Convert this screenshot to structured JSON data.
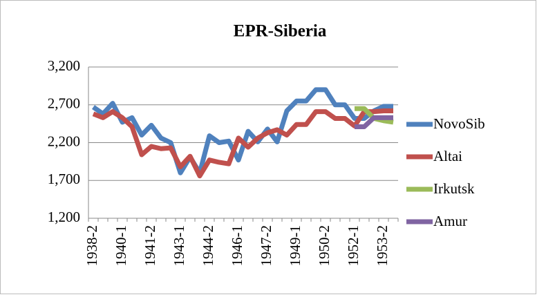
{
  "chart_data": {
    "type": "line",
    "title": "EPR-Siberia",
    "categories": [
      "1938-2",
      null,
      null,
      "1940-1",
      null,
      null,
      "1941-2",
      null,
      null,
      "1943-1",
      null,
      null,
      "1944-2",
      null,
      null,
      "1946-1",
      null,
      null,
      "1947-2",
      null,
      null,
      "1949-1",
      null,
      null,
      "1950-2",
      null,
      null,
      "1952-1",
      null,
      null,
      "1953-2",
      null
    ],
    "ylim": [
      1200,
      3200
    ],
    "yticks": [
      {
        "value": 1200,
        "label": "1,200"
      },
      {
        "value": 1700,
        "label": "1,700"
      },
      {
        "value": 2200,
        "label": "2,200"
      },
      {
        "value": 2700,
        "label": "2,700"
      },
      {
        "value": 3200,
        "label": "3,200"
      }
    ],
    "grid": true,
    "legend": "right",
    "series": [
      {
        "name": "NovoSib",
        "color": "#4f81bd",
        "values": [
          2670,
          2580,
          2720,
          2470,
          2530,
          2300,
          2430,
          2260,
          2200,
          1800,
          2010,
          1800,
          2290,
          2200,
          2220,
          1970,
          2350,
          2210,
          2380,
          2210,
          2620,
          2750,
          2750,
          2900,
          2900,
          2700,
          2700,
          2520,
          2520,
          2620,
          2680,
          2680
        ]
      },
      {
        "name": "Altai",
        "color": "#c0504d",
        "values": [
          2580,
          2530,
          2610,
          2530,
          2410,
          2040,
          2150,
          2120,
          2130,
          1880,
          2020,
          1760,
          1970,
          1940,
          1920,
          2260,
          2140,
          2260,
          2330,
          2370,
          2300,
          2440,
          2440,
          2610,
          2610,
          2520,
          2520,
          2420,
          2610,
          2610,
          2620,
          2620
        ]
      },
      {
        "name": "Irkutsk",
        "color": "#9bbb59",
        "values": [
          null,
          null,
          null,
          null,
          null,
          null,
          null,
          null,
          null,
          null,
          null,
          null,
          null,
          null,
          null,
          null,
          null,
          null,
          null,
          null,
          null,
          null,
          null,
          null,
          null,
          null,
          null,
          2650,
          2650,
          2520,
          2490,
          2470
        ]
      },
      {
        "name": "Amur",
        "color": "#8064a2",
        "values": [
          null,
          null,
          null,
          null,
          null,
          null,
          null,
          null,
          null,
          null,
          null,
          null,
          null,
          null,
          null,
          null,
          null,
          null,
          null,
          null,
          null,
          null,
          null,
          null,
          null,
          null,
          null,
          2410,
          2410,
          2530,
          2530,
          2530
        ]
      }
    ]
  }
}
